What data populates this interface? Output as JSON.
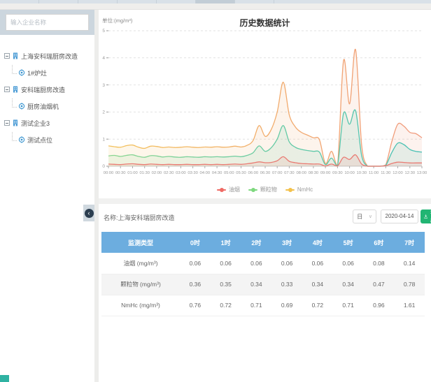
{
  "icons": {
    "collapse_glyph": "‹",
    "caret_glyph": "∨"
  },
  "sidebar": {
    "search_placeholder": "输入企业名称",
    "tree": [
      {
        "label": "上海安科瑞厨房改造",
        "children": [
          "1#炉灶"
        ]
      },
      {
        "label": "安科瑞厨房改造",
        "children": [
          "厨房油烟机"
        ]
      },
      {
        "label": "测试企业3",
        "children": [
          "测试点位"
        ]
      }
    ]
  },
  "chart": {
    "unit_label": "单位:(mg/m³)",
    "title": "历史数据统计"
  },
  "chart_data": {
    "type": "line",
    "x_start_hour": 0,
    "x_step_hours": 0.25,
    "x_tick_labels": [
      "00:00",
      "00:30",
      "01:00",
      "01:30",
      "02:00",
      "02:30",
      "03:00",
      "03:30",
      "04:00",
      "04:30",
      "05:00",
      "05:30",
      "06:00",
      "06:30",
      "07:00",
      "07:30",
      "08:00",
      "08:30",
      "09:00",
      "09:30",
      "10:00",
      "10:30",
      "11:00",
      "11:30",
      "12:00",
      "12:30",
      "13:00"
    ],
    "ylim": [
      0,
      5
    ],
    "y_ticks": [
      0,
      1,
      2,
      3,
      4,
      5
    ],
    "grid": "dashed-horizontal",
    "legend_position": "bottom",
    "series": [
      {
        "name": "油烟",
        "legend_color": "#ef6a64",
        "stroke": [
          "#e97a72",
          "#e97a72"
        ],
        "values": [
          0.08,
          0.07,
          0.06,
          0.08,
          0.09,
          0.07,
          0.06,
          0.08,
          0.07,
          0.06,
          0.07,
          0.06,
          0.06,
          0.07,
          0.06,
          0.06,
          0.07,
          0.06,
          0.07,
          0.06,
          0.07,
          0.08,
          0.07,
          0.09,
          0.12,
          0.16,
          0.13,
          0.14,
          0.2,
          0.35,
          0.18,
          0.13,
          0.1,
          0.09,
          0.08,
          0.08,
          0.01,
          0.08,
          0.01,
          0.33,
          0.25,
          0.42,
          0.08,
          0.0,
          0.0,
          0.0,
          0.02,
          0.1,
          0.15,
          0.14,
          0.12,
          0.12,
          0.12
        ]
      },
      {
        "name": "颗粒物",
        "legend_color": "#7ed87e",
        "stroke": [
          "#8ad690",
          "#45c0b5"
        ],
        "values": [
          0.38,
          0.4,
          0.36,
          0.4,
          0.42,
          0.36,
          0.33,
          0.39,
          0.38,
          0.34,
          0.36,
          0.34,
          0.33,
          0.35,
          0.34,
          0.33,
          0.35,
          0.34,
          0.35,
          0.34,
          0.35,
          0.37,
          0.35,
          0.4,
          0.5,
          0.75,
          0.55,
          0.68,
          1.0,
          1.5,
          0.9,
          0.7,
          0.62,
          0.58,
          0.55,
          0.52,
          0.06,
          0.3,
          0.02,
          1.95,
          1.55,
          2.05,
          0.4,
          0.0,
          0.0,
          0.0,
          0.03,
          0.5,
          0.85,
          0.8,
          0.62,
          0.55,
          0.52
        ]
      },
      {
        "name": "NmHc",
        "legend_color": "#f3c14b",
        "stroke": [
          "#f3c159",
          "#f0997d"
        ],
        "values": [
          0.75,
          0.72,
          0.7,
          0.76,
          0.78,
          0.7,
          0.66,
          0.74,
          0.73,
          0.69,
          0.71,
          0.69,
          0.7,
          0.72,
          0.7,
          0.69,
          0.71,
          0.7,
          0.72,
          0.7,
          0.71,
          0.74,
          0.71,
          0.77,
          0.95,
          1.5,
          1.1,
          1.35,
          2.0,
          3.1,
          1.9,
          1.45,
          1.25,
          1.15,
          1.05,
          0.98,
          0.1,
          0.55,
          0.03,
          3.9,
          2.3,
          4.3,
          0.8,
          0.0,
          0.0,
          0.0,
          0.05,
          0.9,
          1.55,
          1.48,
          1.25,
          1.2,
          1.05
        ]
      }
    ]
  },
  "toolbar": {
    "name_label": "名称:上海安科瑞厨房改造",
    "period_value": "日",
    "date_value": "2020-04-14",
    "export_label": "导出"
  },
  "table": {
    "headers": [
      "监测类型",
      "0时",
      "1时",
      "2时",
      "3时",
      "4时",
      "5时",
      "6时",
      "7时"
    ],
    "rows": [
      {
        "label": "油烟 (mg/m³)",
        "values": [
          "0.06",
          "0.06",
          "0.06",
          "0.06",
          "0.06",
          "0.06",
          "0.08",
          "0.14"
        ]
      },
      {
        "label": "颗粒物 (mg/m³)",
        "values": [
          "0.36",
          "0.35",
          "0.34",
          "0.33",
          "0.34",
          "0.34",
          "0.47",
          "0.78"
        ]
      },
      {
        "label": "NmHc (mg/m³)",
        "values": [
          "0.76",
          "0.72",
          "0.71",
          "0.69",
          "0.72",
          "0.71",
          "0.96",
          "1.61"
        ]
      }
    ]
  }
}
